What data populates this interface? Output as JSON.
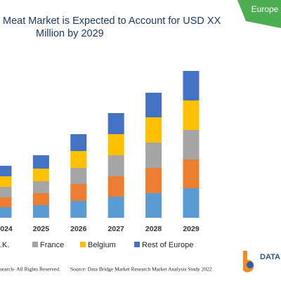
{
  "chart_data": {
    "type": "stacked-bar",
    "title_lines": [
      "Meat Market is Expected to Account for USD XX",
      "Million by 2029"
    ],
    "region": "Europe",
    "categories": [
      "024",
      "2025",
      "2026",
      "2027",
      "2028",
      "2029"
    ],
    "series": [
      {
        "name": null,
        "color": "#5b9bd5",
        "values": [
          15,
          18,
          24,
          30,
          35,
          42
        ]
      },
      {
        "name": ".K.",
        "color": "#ed7d31",
        "values": [
          14,
          17,
          24,
          29,
          36,
          41
        ]
      },
      {
        "name": "France",
        "color": "#a5a5a5",
        "values": [
          15,
          17,
          23,
          30,
          36,
          42
        ]
      },
      {
        "name": "Belgium",
        "color": "#ffc000",
        "values": [
          15,
          18,
          24,
          30,
          36,
          42
        ]
      },
      {
        "name": "Rest of Europe",
        "color": "#4472c4",
        "values": [
          15,
          19,
          24,
          30,
          35,
          42
        ]
      }
    ],
    "ylim": [
      0,
      210
    ],
    "footer_left": "search- All Rights Reserved.",
    "footer_source": "Source: Data Bridge Market Research Market Analysis Study 2022",
    "logo_text": "DATA"
  }
}
